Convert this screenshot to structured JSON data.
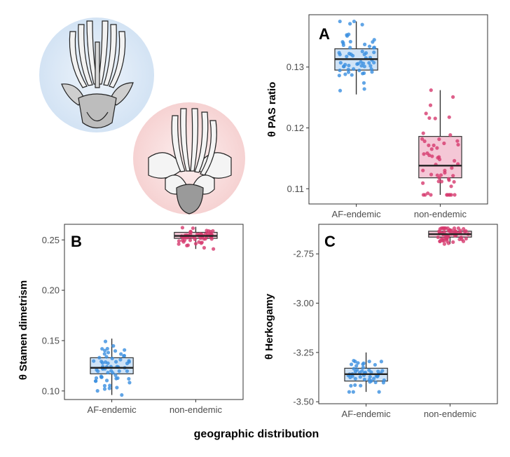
{
  "xlabel": "geographic distribution",
  "colors": {
    "af_point": "#3a8ee0",
    "af_box": "#cfe3f7",
    "ne_point": "#d63a6e",
    "ne_box": "#f4c7d6",
    "circle_blue": "#dce8f5",
    "circle_red": "#f8dcdc"
  },
  "illustrations": [
    {
      "name": "flower-drawing-af-endemic",
      "icon": "flower-icon"
    },
    {
      "name": "flower-drawing-non-endemic",
      "icon": "flower-icon"
    }
  ],
  "chart_data": [
    {
      "panel": "A",
      "type": "box-jitter",
      "ylabel": "θ PAS ratio",
      "categories": [
        "AF-endemic",
        "non-endemic"
      ],
      "ylim": [
        0.1075,
        0.1386
      ],
      "yticks": [
        0.11,
        0.12,
        0.13
      ],
      "yticklabels": [
        "0.11",
        "0.12",
        "0.13"
      ],
      "grid": false,
      "boxes": [
        {
          "category": "AF-endemic",
          "whisker_low": 0.1255,
          "q1": 0.1295,
          "median": 0.1313,
          "q3": 0.133,
          "whisker_high": 0.1375,
          "n": 60
        },
        {
          "category": "non-endemic",
          "whisker_low": 0.109,
          "q1": 0.1118,
          "median": 0.1138,
          "q3": 0.1186,
          "whisker_high": 0.1262,
          "n": 55
        }
      ]
    },
    {
      "panel": "B",
      "type": "box-jitter",
      "ylabel": "θ Stamen dimetrism",
      "categories": [
        "AF-endemic",
        "non-endemic"
      ],
      "ylim": [
        0.0915,
        0.2655
      ],
      "yticks": [
        0.1,
        0.15,
        0.2,
        0.25
      ],
      "yticklabels": [
        "0.10",
        "0.15",
        "0.20",
        "0.25"
      ],
      "grid": false,
      "boxes": [
        {
          "category": "AF-endemic",
          "whisker_low": 0.096,
          "q1": 0.117,
          "median": 0.123,
          "q3": 0.133,
          "whisker_high": 0.152,
          "n": 60
        },
        {
          "category": "non-endemic",
          "whisker_low": 0.241,
          "q1": 0.2515,
          "median": 0.254,
          "q3": 0.2575,
          "whisker_high": 0.263,
          "n": 60
        }
      ]
    },
    {
      "panel": "C",
      "type": "box-jitter",
      "ylabel": "θ Herkogamy",
      "categories": [
        "AF-endemic",
        "non-endemic"
      ],
      "ylim": [
        -3.51,
        -2.6
      ],
      "yticks": [
        -3.5,
        -3.25,
        -3.0,
        -2.75
      ],
      "yticklabels": [
        "-3.50",
        "-3.25",
        "-3.00",
        "-2.75"
      ],
      "grid": false,
      "boxes": [
        {
          "category": "AF-endemic",
          "whisker_low": -3.45,
          "q1": -3.395,
          "median": -3.36,
          "q3": -3.33,
          "whisker_high": -3.25,
          "n": 50
        },
        {
          "category": "non-endemic",
          "whisker_low": -2.7,
          "q1": -2.665,
          "median": -2.65,
          "q3": -2.635,
          "whisker_high": -2.62,
          "n": 60
        }
      ]
    }
  ]
}
